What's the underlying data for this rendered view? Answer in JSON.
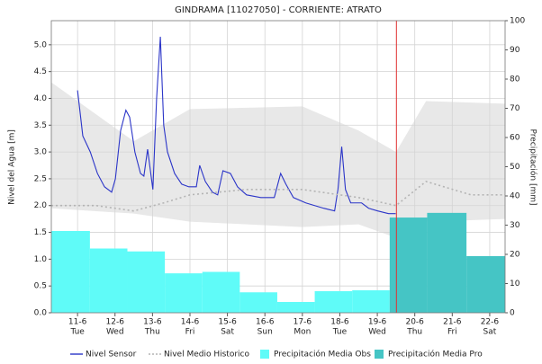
{
  "chart_data": {
    "type": "combo",
    "title": "GINDRAMA [11027050] - CORRIENTE: ATRATO",
    "ylabel": "Nivel del Agua [m]",
    "y2label": "Precipitación [mm]",
    "xlim": [
      10.3,
      22.41
    ],
    "xticks": [
      {
        "value": 11,
        "label": "11-6",
        "day": "Tue"
      },
      {
        "value": 12,
        "label": "12-6",
        "day": "Wed"
      },
      {
        "value": 13,
        "label": "13-6",
        "day": "Thu"
      },
      {
        "value": 14,
        "label": "14-6",
        "day": "Fri"
      },
      {
        "value": 15,
        "label": "15-6",
        "day": "Sat"
      },
      {
        "value": 16,
        "label": "16-6",
        "day": "Sun"
      },
      {
        "value": 17,
        "label": "17-6",
        "day": "Mon"
      },
      {
        "value": 18,
        "label": "18-6",
        "day": "Tue"
      },
      {
        "value": 19,
        "label": "19-6",
        "day": "Wed"
      },
      {
        "value": 20,
        "label": "20-6",
        "day": "Thu"
      },
      {
        "value": 21,
        "label": "21-6",
        "day": "Fri"
      },
      {
        "value": 22,
        "label": "22-6",
        "day": "Sat"
      }
    ],
    "ylim": [
      0,
      5.45
    ],
    "yticks": [
      {
        "value": 0,
        "label": "0.0"
      },
      {
        "value": 0.5,
        "label": "0.5"
      },
      {
        "value": 1,
        "label": "1.0"
      },
      {
        "value": 1.5,
        "label": "1.5"
      },
      {
        "value": 2,
        "label": "2.0"
      },
      {
        "value": 2.5,
        "label": "2.5"
      },
      {
        "value": 3,
        "label": "3.0"
      },
      {
        "value": 3.5,
        "label": "3.5"
      },
      {
        "value": 4,
        "label": "4.0"
      },
      {
        "value": 4.5,
        "label": "4.5"
      },
      {
        "value": 5,
        "label": "5.0"
      }
    ],
    "y2lim": [
      0,
      100
    ],
    "y2ticks": [
      0,
      10,
      20,
      30,
      40,
      50,
      60,
      70,
      80,
      90,
      100
    ],
    "grid": true,
    "now_x": 19.51,
    "now_color": "#e03030",
    "band": {
      "color": "#e8e8e8",
      "x": [
        10.3,
        12.5,
        14.0,
        17.0,
        18.5,
        19.5,
        20.3,
        22.41
      ],
      "upper": [
        4.3,
        3.2,
        3.8,
        3.85,
        3.4,
        3.0,
        3.95,
        3.9
      ],
      "lower": [
        1.95,
        1.85,
        1.7,
        1.6,
        1.65,
        1.4,
        1.7,
        1.75
      ]
    },
    "series": [
      {
        "name": "Nivel Sensor",
        "type": "line",
        "color": "#2b35c8",
        "x": [
          11.0,
          11.14,
          11.34,
          11.53,
          11.72,
          11.91,
          12.01,
          12.15,
          12.29,
          12.39,
          12.53,
          12.68,
          12.77,
          12.87,
          13.01,
          13.11,
          13.21,
          13.3,
          13.4,
          13.59,
          13.78,
          13.97,
          14.17,
          14.26,
          14.41,
          14.6,
          14.74,
          14.88,
          15.08,
          15.27,
          15.51,
          15.89,
          16.25,
          16.42,
          16.56,
          16.76,
          17.09,
          17.57,
          17.86,
          17.95,
          18.05,
          18.15,
          18.29,
          18.58,
          18.77,
          19.01,
          19.3,
          19.49
        ],
        "values": [
          4.15,
          3.3,
          3.0,
          2.6,
          2.35,
          2.25,
          2.5,
          3.4,
          3.78,
          3.65,
          3.0,
          2.6,
          2.55,
          3.05,
          2.3,
          4.0,
          5.15,
          3.5,
          3.0,
          2.6,
          2.4,
          2.35,
          2.35,
          2.75,
          2.45,
          2.25,
          2.2,
          2.65,
          2.6,
          2.35,
          2.2,
          2.15,
          2.15,
          2.6,
          2.4,
          2.15,
          2.05,
          1.95,
          1.9,
          2.3,
          3.1,
          2.3,
          2.05,
          2.05,
          1.95,
          1.9,
          1.85,
          1.85
        ]
      },
      {
        "name": "Nivel Medio Historico",
        "type": "line",
        "style": "dotted",
        "color": "#b4b4b4",
        "x": [
          10.3,
          11.5,
          12.5,
          13.3,
          14.0,
          15.5,
          17.0,
          18.5,
          19.5,
          20.3,
          21.5,
          22.41
        ],
        "values": [
          2.0,
          2.0,
          1.9,
          2.05,
          2.2,
          2.3,
          2.3,
          2.15,
          2.0,
          2.45,
          2.2,
          2.2
        ]
      },
      {
        "name": "Precipitación Media Obs",
        "type": "bar",
        "axis": "y2",
        "color": "#5ffbf8",
        "bins": [
          10.3,
          11.33,
          12.33,
          13.33,
          14.33,
          15.33,
          16.33,
          17.33,
          18.33,
          19.33
        ],
        "values": [
          28,
          22,
          21,
          13.5,
          14,
          7,
          3.7,
          7.4,
          7.7
        ]
      },
      {
        "name": "Precipitación Media Pro",
        "type": "bar",
        "axis": "y2",
        "color": "#45c5c5",
        "bins": [
          19.33,
          20.33,
          21.38,
          22.41
        ],
        "values": [
          32.6,
          34.2,
          19.4
        ]
      }
    ]
  }
}
